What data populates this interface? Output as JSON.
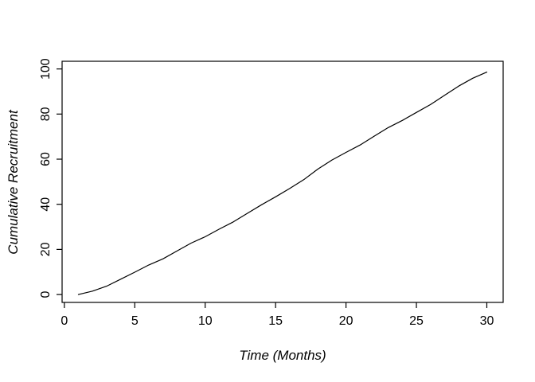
{
  "chart_data": {
    "type": "line",
    "title": "",
    "xlabel": "Time (Months)",
    "ylabel": "Cumulative Recruitment",
    "x": [
      1,
      2,
      3,
      4,
      5,
      6,
      7,
      8,
      9,
      10,
      11,
      12,
      13,
      14,
      15,
      16,
      17,
      18,
      19,
      20,
      21,
      22,
      23,
      24,
      25,
      26,
      27,
      28,
      29,
      30
    ],
    "y": [
      0,
      1.5,
      3.7,
      6.8,
      9.9,
      13.1,
      15.8,
      19.3,
      22.8,
      25.6,
      29.0,
      32.2,
      36.0,
      39.8,
      43.3,
      47.0,
      50.9,
      55.6,
      59.6,
      63.0,
      66.3,
      70.2,
      74.0,
      77.2,
      80.7,
      84.2,
      88.3,
      92.4,
      95.9,
      98.6
    ],
    "x_ticks": [
      0,
      5,
      10,
      15,
      20,
      25,
      30
    ],
    "x_tick_labels": [
      "0",
      "5",
      "10",
      "15",
      "20",
      "25",
      "30"
    ],
    "y_ticks": [
      0,
      20,
      40,
      60,
      80,
      100
    ],
    "y_tick_labels": [
      "0",
      "20",
      "40",
      "60",
      "80",
      "100"
    ],
    "xlim": [
      -0.16,
      31.16
    ],
    "ylim": [
      -3.5,
      103.4
    ],
    "grid": false,
    "legend_position": "none",
    "line_color": "#000000",
    "box_color": "#000000",
    "text_color": "#000000",
    "background_color": "#ffffff"
  }
}
